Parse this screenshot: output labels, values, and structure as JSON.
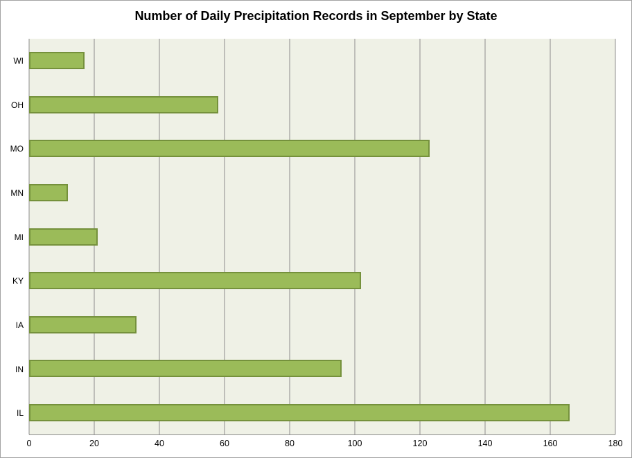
{
  "chart_data": {
    "type": "bar",
    "orientation": "horizontal",
    "title": "Number of Daily Precipitation Records in September by State",
    "categories_top_to_bottom": [
      "WI",
      "OH",
      "MO",
      "MN",
      "MI",
      "KY",
      "IA",
      "IN",
      "IL"
    ],
    "values": [
      17,
      58,
      123,
      12,
      21,
      102,
      33,
      96,
      166
    ],
    "xlabel": "",
    "ylabel": "",
    "xlim": [
      0,
      180
    ],
    "xticks": [
      0,
      20,
      40,
      60,
      80,
      100,
      120,
      140,
      160,
      180
    ],
    "grid": "vertical-only",
    "legend": "none",
    "colors": {
      "bar_fill": "#9BBB59",
      "bar_border": "#75913C",
      "plot_background": "#EFF1E6",
      "gridline": "#8C8C8C",
      "axis_text": "#000000",
      "title_text": "#000000",
      "frame_border": "#A3A3A3",
      "page_background": "#FFFFFF"
    }
  }
}
